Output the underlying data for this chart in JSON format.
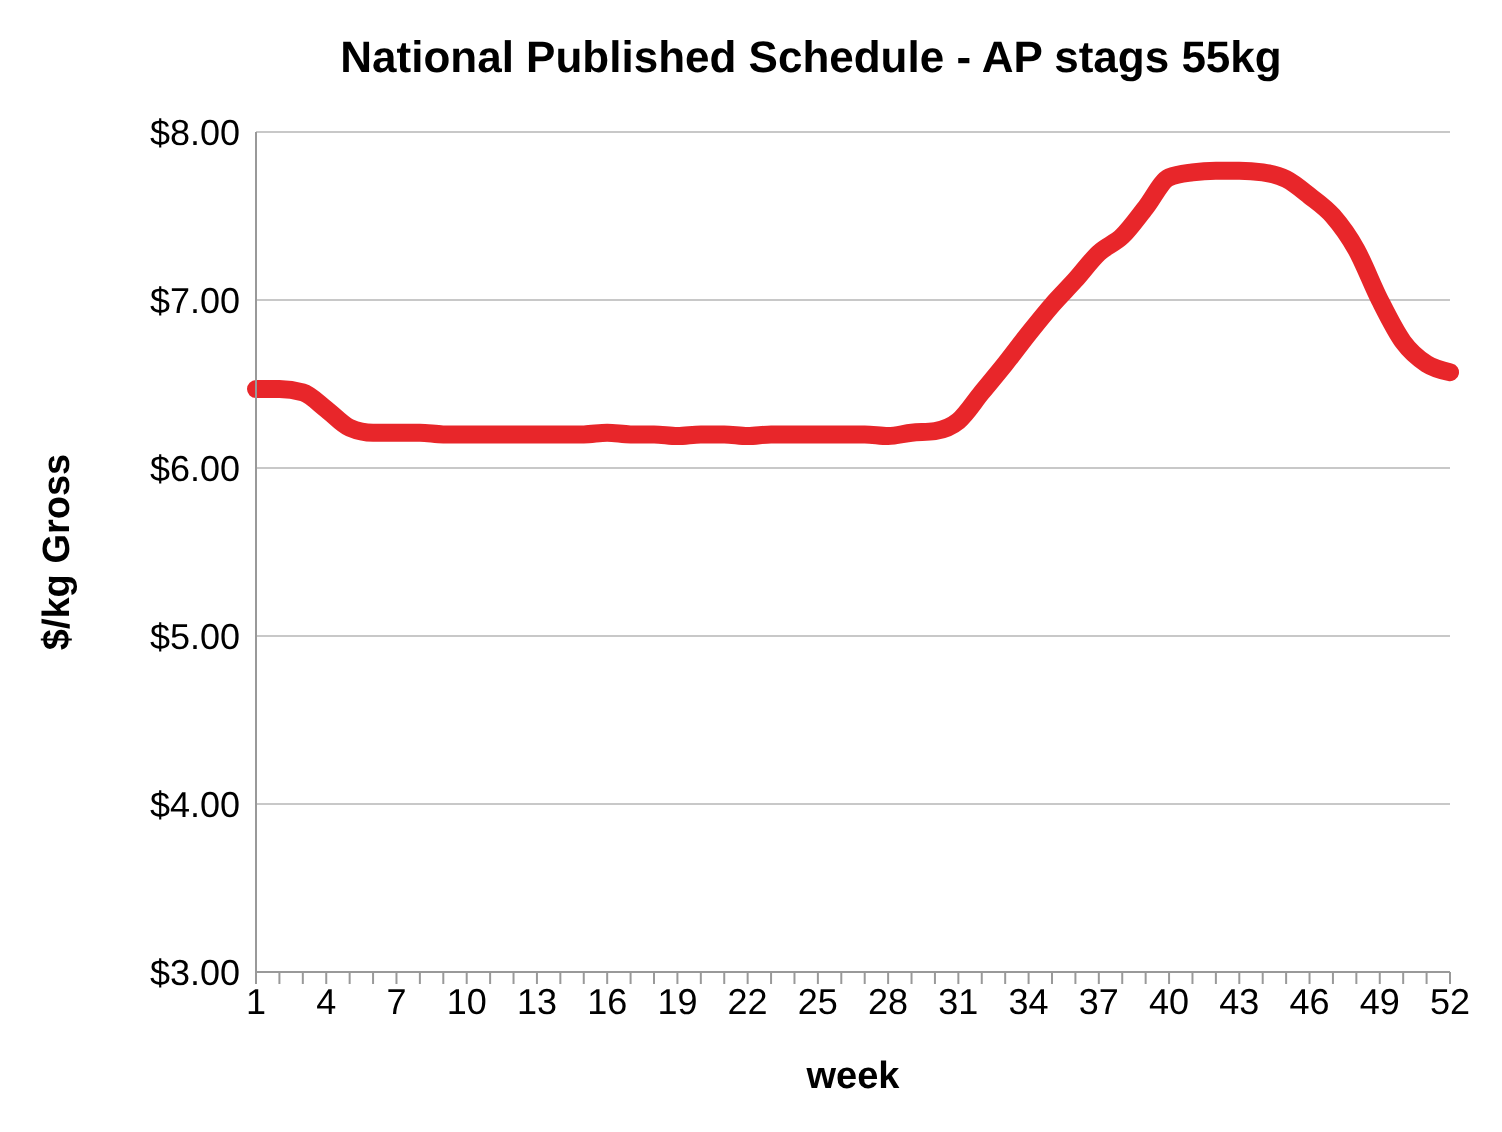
{
  "chart_data": {
    "type": "line",
    "title": "National Published Schedule - AP stags 55kg",
    "xlabel": "week",
    "ylabel": "$/kg Gross",
    "categories": [
      "1",
      null,
      null,
      "4",
      null,
      null,
      "7",
      null,
      null,
      "10",
      null,
      null,
      "13",
      null,
      null,
      "16",
      null,
      null,
      "19",
      null,
      null,
      "22",
      null,
      null,
      "25",
      null,
      null,
      "28",
      null,
      null,
      "31",
      null,
      null,
      "34",
      null,
      null,
      "37",
      null,
      null,
      "40",
      null,
      null,
      "43",
      null,
      null,
      "46",
      null,
      null,
      "49",
      null,
      null,
      "52"
    ],
    "series": [
      {
        "color": "#e8262a",
        "values": [
          6.47,
          6.47,
          6.45,
          6.35,
          6.24,
          6.21,
          6.21,
          6.21,
          6.2,
          6.2,
          6.2,
          6.2,
          6.2,
          6.2,
          6.2,
          6.21,
          6.2,
          6.2,
          6.19,
          6.2,
          6.2,
          6.19,
          6.2,
          6.2,
          6.2,
          6.2,
          6.2,
          6.19,
          6.21,
          6.22,
          6.28,
          6.45,
          6.62,
          6.8,
          6.97,
          7.12,
          7.28,
          7.38,
          7.55,
          7.73,
          7.76,
          7.77,
          7.77,
          7.76,
          7.72,
          7.62,
          7.5,
          7.3,
          7.0,
          6.75,
          6.62,
          6.57
        ]
      }
    ],
    "ylim": [
      3,
      8
    ],
    "yticks": [
      {
        "value": 3,
        "label": "$3.00"
      },
      {
        "value": 4,
        "label": "$4.00"
      },
      {
        "value": 5,
        "label": "$5.00"
      },
      {
        "value": 6,
        "label": "$6.00"
      },
      {
        "value": 7,
        "label": "$7.00"
      },
      {
        "value": 8,
        "label": "$8.00"
      }
    ],
    "grid": "y",
    "line_style": "solid"
  }
}
